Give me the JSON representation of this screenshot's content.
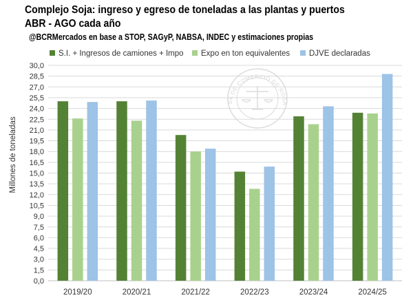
{
  "chart_data": {
    "type": "bar",
    "title": "Complejo Soja: ingreso y egreso de toneladas a las plantas y puertos",
    "subtitle": "ABR - AGO cada año",
    "source_note": "@BCRMercados  en base a STOP, SAGyP, NABSA, INDEC y estimaciones propias",
    "ylabel": "Millones de toneladas",
    "xlabel": "",
    "ylim": [
      0,
      30
    ],
    "ytick_labels": [
      "0,0",
      "1,5",
      "3,0",
      "4,5",
      "6,0",
      "7,5",
      "9,0",
      "10,5",
      "12,0",
      "13,5",
      "15,0",
      "16,5",
      "18,0",
      "19,5",
      "21,0",
      "22,5",
      "24,0",
      "25,5",
      "27,0",
      "28,5",
      "30,0"
    ],
    "categories": [
      "2019/20",
      "2020/21",
      "2021/22",
      "2022/23",
      "2023/24",
      "2024/25"
    ],
    "series": [
      {
        "name": "S.I. + Ingresos de camiones + Impo",
        "color": "#548235",
        "values": [
          25.0,
          25.0,
          20.3,
          15.2,
          22.9,
          23.4
        ]
      },
      {
        "name": "Expo en ton equivalentes",
        "color": "#a9d18e",
        "values": [
          22.6,
          22.3,
          18.0,
          12.8,
          21.8,
          23.3
        ]
      },
      {
        "name": "DJVE declaradas",
        "color": "#9dc3e6",
        "values": [
          24.9,
          25.1,
          18.4,
          15.9,
          24.3,
          28.8
        ]
      }
    ],
    "legend_position": "top",
    "grid": true,
    "watermark": "BOLSA DE COMERCIO DE ROSARIO"
  }
}
